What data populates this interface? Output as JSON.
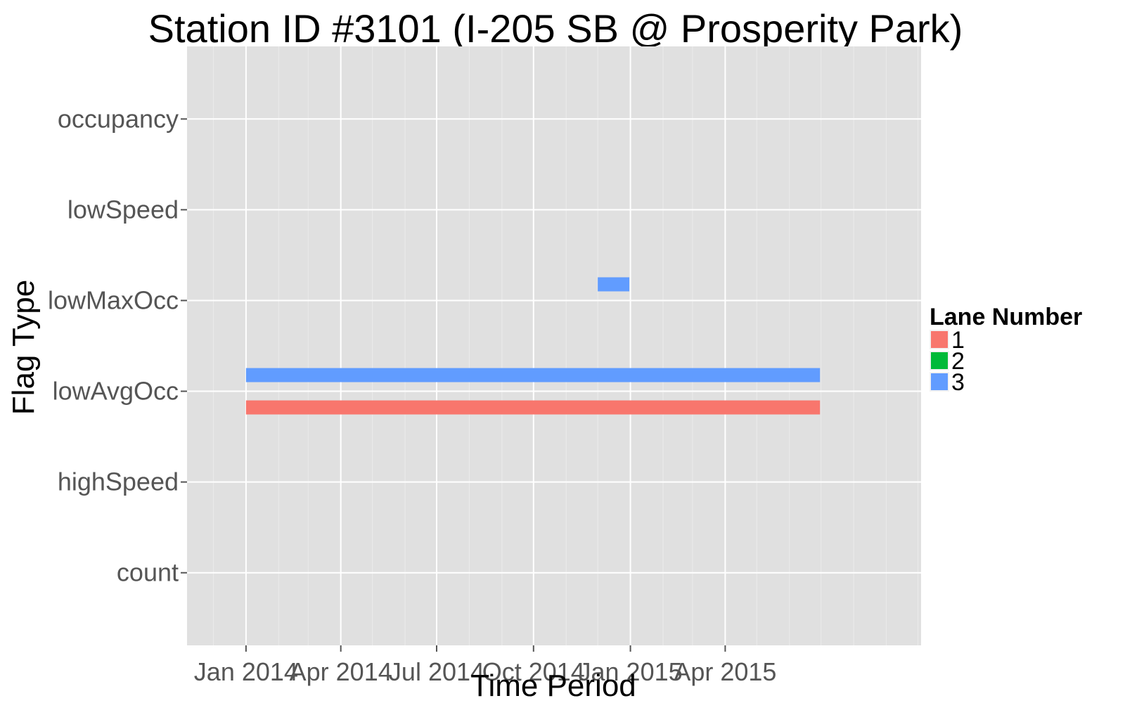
{
  "chart_data": {
    "type": "bar",
    "subtype": "horizontal-segments",
    "title": "Station ID #3101 (I-205 SB @ Prosperity Park)",
    "xlabel": "Time Period",
    "ylabel": "Flag Type",
    "x_ticks": [
      "2014-01-01",
      "2014-04-01",
      "2014-07-01",
      "2014-10-01",
      "2015-01-01",
      "2015-04-01"
    ],
    "x_tick_labels": [
      "Jan 2014",
      "Apr 2014",
      "Jul 2014",
      "Oct 2014",
      "Jan 2015",
      "Apr 2015"
    ],
    "xlim": [
      "2013-11-06",
      "2015-10-04"
    ],
    "categories": [
      "count",
      "highSpeed",
      "lowAvgOcc",
      "lowMaxOcc",
      "lowSpeed",
      "occupancy"
    ],
    "grid": true,
    "background": "#e0e0e0",
    "legend": {
      "title": "Lane Number",
      "position": "right",
      "entries": [
        {
          "label": "1",
          "color": "#f8766d"
        },
        {
          "label": "2",
          "color": "#00ba38"
        },
        {
          "label": "3",
          "color": "#619cff"
        }
      ]
    },
    "series": [
      {
        "name": "1",
        "color": "#f8766d",
        "segments": [
          {
            "category": "lowAvgOcc",
            "start": "2014-01-01",
            "end": "2015-06-30"
          }
        ]
      },
      {
        "name": "2",
        "color": "#00ba38",
        "segments": []
      },
      {
        "name": "3",
        "color": "#619cff",
        "segments": [
          {
            "category": "lowAvgOcc",
            "start": "2014-01-01",
            "end": "2015-06-30"
          },
          {
            "category": "lowMaxOcc",
            "start": "2014-12-01",
            "end": "2014-12-31"
          }
        ]
      }
    ]
  }
}
